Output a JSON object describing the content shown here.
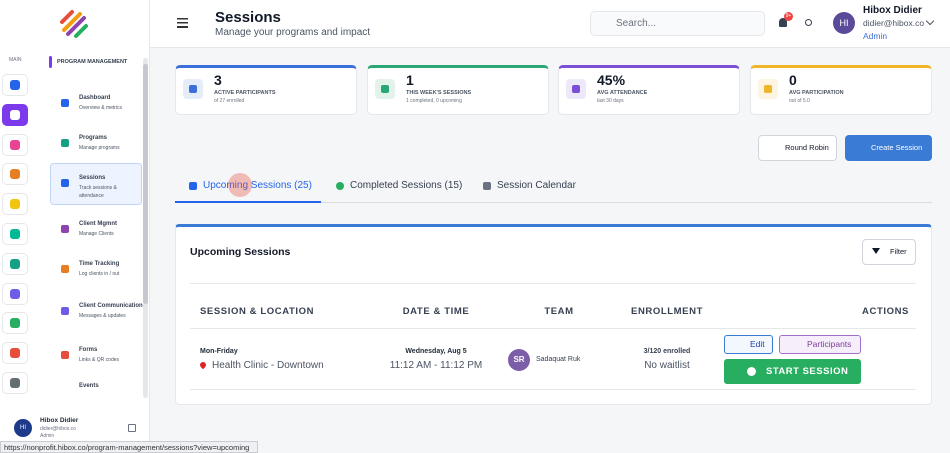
{
  "rail": {
    "label": "MAIN"
  },
  "sidebar": {
    "section": "PROGRAM MANAGEMENT",
    "items": [
      {
        "title": "Dashboard",
        "subtitle": "Overview & metrics"
      },
      {
        "title": "Programs",
        "subtitle": "Manage programs"
      },
      {
        "title": "Sessions",
        "subtitle": "Track sessions & attendance"
      },
      {
        "title": "Client Mgmnt",
        "subtitle": "Manage Clients"
      },
      {
        "title": "Time Tracking",
        "subtitle": "Log clients in / out"
      },
      {
        "title": "Client Communication",
        "subtitle": "Messages & updates"
      },
      {
        "title": "Forms",
        "subtitle": "Links & QR codes"
      },
      {
        "title": "Events"
      }
    ],
    "user": {
      "initials": "HI",
      "name": "Hibox Didier",
      "email": "didier@hibox.co",
      "role": "Admin"
    }
  },
  "status_url": "https://nonprofit.hibox.co/program-management/sessions?view=upcoming",
  "header": {
    "title": "Sessions",
    "subtitle": "Manage your programs and impact",
    "search": "Search...",
    "badge": "9+",
    "user": {
      "initials": "HI",
      "name": "Hibox Didier",
      "email": "didier@hibox.co",
      "role": "Admin"
    }
  },
  "stats": [
    {
      "value": "3",
      "label": "ACTIVE PARTICIPANTS",
      "note": "of 27 enrolled",
      "color": "#3b6fd9"
    },
    {
      "value": "1",
      "label": "THIS WEEK'S SESSIONS",
      "note": "1 completed, 0 upcoming",
      "color": "#2aa774"
    },
    {
      "value": "45%",
      "label": "AVG ATTENDANCE",
      "note": "last 30 days",
      "color": "#7b4fd6"
    },
    {
      "value": "0",
      "label": "AVG PARTICIPATION",
      "note": "out of 5.0",
      "color": "#f0b429"
    }
  ],
  "actions": {
    "round_robin": "Round Robin",
    "create": "Create Session"
  },
  "tabs": [
    "Upcoming Sessions (25)",
    "Completed Sessions (15)",
    "Session Calendar"
  ],
  "panel": {
    "title": "Upcoming Sessions",
    "filter": "Filter",
    "columns": [
      "SESSION & LOCATION",
      "DATE & TIME",
      "TEAM",
      "ENROLLMENT",
      "ACTIONS"
    ],
    "rows": [
      {
        "schedule": "Mon-Friday",
        "location": "Health Clinic - Downtown",
        "date": "Wednesday, Aug 5",
        "time": "11:12 AM - 11:12 PM",
        "team_initials": "SR",
        "team_name": "Sadaquat Ruk",
        "enrolled": "3/120 enrolled",
        "waitlist": "No waitlist",
        "edit": "Edit",
        "participants": "Participants",
        "start": "START SESSION"
      }
    ]
  }
}
